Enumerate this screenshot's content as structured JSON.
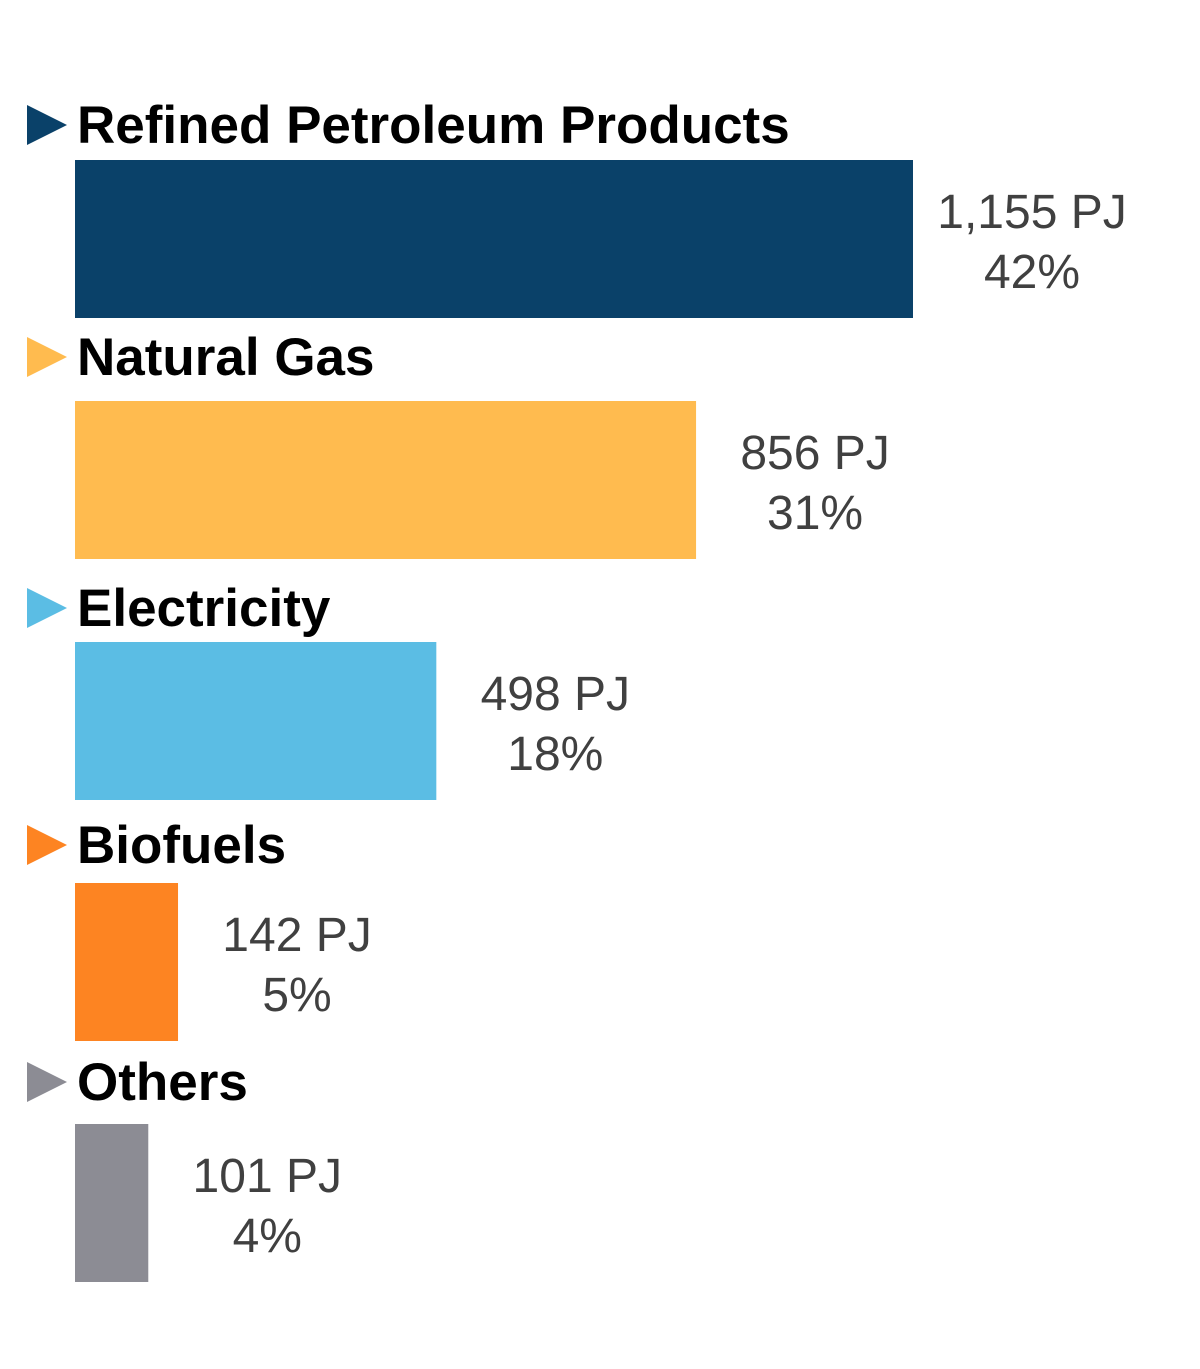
{
  "chart_data": {
    "type": "bar",
    "orientation": "horizontal",
    "categories": [
      "Refined Petroleum Products",
      "Natural Gas",
      "Electricity",
      "Biofuels",
      "Others"
    ],
    "values": [
      1155,
      856,
      498,
      142,
      101
    ],
    "value_labels": [
      "1,155 PJ",
      "856 PJ",
      "498 PJ",
      "142 PJ",
      "101 PJ"
    ],
    "percent_labels": [
      "42%",
      "31%",
      "18%",
      "5%",
      "4%"
    ],
    "percent": [
      42,
      31,
      18,
      5,
      4
    ],
    "unit": "PJ",
    "colors": [
      "#0a4169",
      "#ffbb4f",
      "#5bbde4",
      "#fd8422",
      "#8c8c94"
    ],
    "marker_icon": "triangle-right-icon",
    "grid": false,
    "legend": "none"
  }
}
